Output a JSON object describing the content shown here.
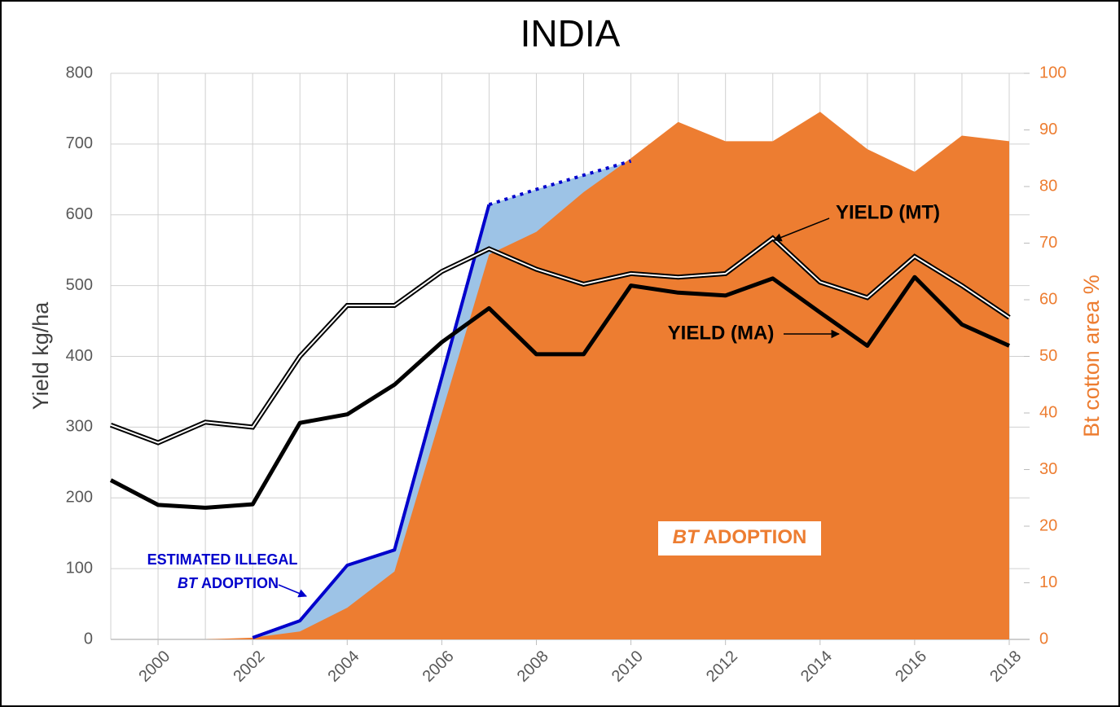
{
  "chart_data": {
    "type": "line",
    "title": "INDIA",
    "y_label": "Yield kg/ha",
    "y2_label": "Bt cotton area %",
    "x": [
      1999,
      2000,
      2001,
      2002,
      2003,
      2004,
      2005,
      2006,
      2007,
      2008,
      2009,
      2010,
      2011,
      2012,
      2013,
      2014,
      2015,
      2016,
      2017,
      2018
    ],
    "xlim": [
      1999,
      2018
    ],
    "xticks": [
      2000,
      2002,
      2004,
      2006,
      2008,
      2010,
      2012,
      2014,
      2016,
      2018
    ],
    "ylim": [
      0,
      800
    ],
    "yticks": [
      0,
      100,
      200,
      300,
      400,
      500,
      600,
      700,
      800
    ],
    "y2lim": [
      0,
      100
    ],
    "y2ticks": [
      0,
      10,
      20,
      30,
      40,
      50,
      60,
      70,
      80,
      90,
      100
    ],
    "grid": true,
    "series": [
      {
        "kind": "area",
        "axis": "y2",
        "color": "#ed7d31",
        "values": [
          null,
          null,
          0,
          0.3,
          1.4,
          5.6,
          12,
          40,
          68,
          72,
          79,
          85,
          91.4,
          88,
          88,
          93.2,
          86.6,
          82.6,
          89,
          88
        ]
      },
      {
        "kind": "line",
        "style": "solid",
        "axis": "y2",
        "color": "#0000cc",
        "fill": "#9dc3e6",
        "values": [
          null,
          null,
          null,
          0.3,
          3.3,
          13.1,
          15.8,
          46.3,
          76.8,
          null,
          null,
          null,
          null,
          null,
          null,
          null,
          null,
          null,
          null,
          null
        ]
      },
      {
        "kind": "line",
        "style": "dotted",
        "axis": "y2",
        "color": "#0000cc",
        "fill": "#9dc3e6",
        "values": [
          null,
          null,
          null,
          null,
          null,
          null,
          null,
          null,
          76.8,
          79.5,
          82,
          84.5,
          null,
          null,
          null,
          null,
          null,
          null,
          null,
          null
        ]
      },
      {
        "kind": "double-line",
        "color": "#000000",
        "values": [
          303,
          278,
          307,
          300,
          400,
          472,
          472,
          520,
          552,
          523,
          502,
          517,
          512,
          517,
          567,
          505,
          483,
          541,
          500,
          455
        ]
      },
      {
        "kind": "line",
        "style": "solid",
        "color": "#000000",
        "values": [
          225,
          190,
          186,
          191,
          306,
          318,
          360,
          420,
          468,
          403,
          403,
          500,
          490,
          486,
          510,
          462,
          415,
          512,
          445,
          415
        ]
      }
    ],
    "annotations": [
      "YIELD (MT)",
      "YIELD (MA)",
      "ESTIMATED ILLEGAL",
      "BT",
      "ADOPTION",
      "BT",
      "ADOPTION"
    ]
  }
}
